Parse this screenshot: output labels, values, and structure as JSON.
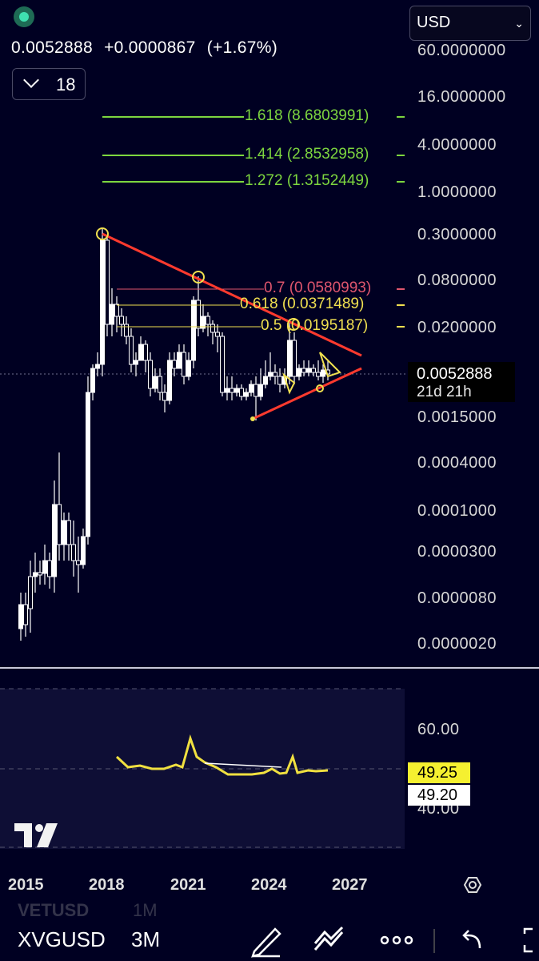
{
  "header": {
    "price": "0.0052888",
    "change": "+0.0000867",
    "change_pct": "(+1.67%)",
    "currency": "USD",
    "indicator_count": "18"
  },
  "chart_data": [
    {
      "type": "candlestick",
      "scale": "log",
      "price_axis": [
        "60.0000000",
        "16.0000000",
        "4.0000000",
        "1.0000000",
        "0.3000000",
        "0.0800000",
        "0.0200000",
        "0.0015000",
        "0.0004000",
        "0.0001000",
        "0.0000300",
        "0.0000080",
        "0.0000020"
      ],
      "time_axis": [
        "2015",
        "2018",
        "2021",
        "2024",
        "2027"
      ],
      "last_price": "0.0052888",
      "countdown": "21d 21h",
      "fib_levels": [
        {
          "label": "1.618 (8.6803991)",
          "color": "#7dd63f"
        },
        {
          "label": "1.414 (2.8532958)",
          "color": "#7dd63f"
        },
        {
          "label": "1.272 (1.3152449)",
          "color": "#7dd63f"
        },
        {
          "label": "0.7 (0.0580993)",
          "color": "#e0566e"
        },
        {
          "label": "0.618 (0.0371489)",
          "color": "#f0e050"
        },
        {
          "label": "0.5 (0.0195187)",
          "color": "#f0e050"
        }
      ],
      "pattern": "symmetrical triangle",
      "trendline_color": "#ff3a2e"
    },
    {
      "type": "line",
      "indicator": "RSI",
      "y_axis": [
        "60.00",
        "40.00"
      ],
      "values": [
        49.25,
        49.2
      ],
      "line_color": "#f0e040"
    }
  ],
  "rsi": {
    "value_a": "49.25",
    "value_b": "49.20"
  },
  "toolbar": {
    "symbol": "XVGUSD",
    "interval": "3M",
    "ghost_symbol": "VETUSD",
    "ghost_interval": "1M"
  }
}
